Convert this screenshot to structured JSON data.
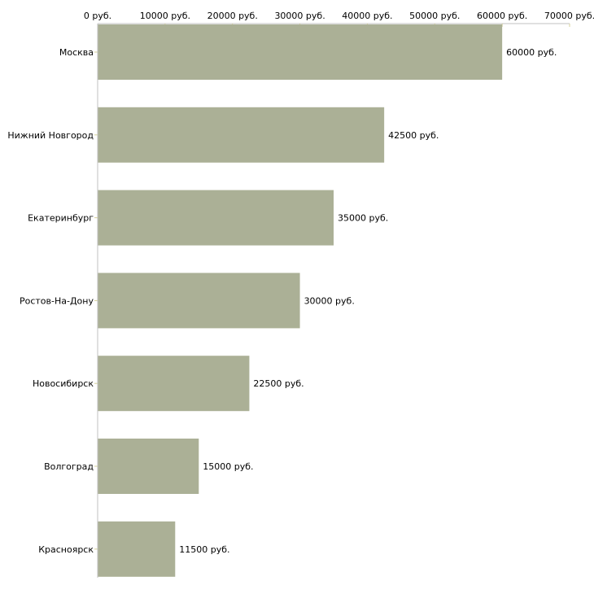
{
  "chart_data": {
    "type": "bar",
    "orientation": "horizontal",
    "title": "",
    "xlabel": "",
    "ylabel": "",
    "xlim": [
      0,
      70000
    ],
    "x_ticks": [
      0,
      10000,
      20000,
      30000,
      40000,
      50000,
      60000,
      70000
    ],
    "tick_labels": [
      "0 руб.",
      "10000 руб.",
      "20000 руб.",
      "30000 руб.",
      "40000 руб.",
      "50000 руб.",
      "60000 руб.",
      "70000 руб."
    ],
    "categories": [
      "Москва",
      "Нижний Новгород",
      "Екатеринбург",
      "Ростов-На-Дону",
      "Новосибирск",
      "Волгоград",
      "Красноярск"
    ],
    "values": [
      60000,
      42500,
      35000,
      30000,
      22500,
      15000,
      11500
    ],
    "data_labels": [
      "60000 руб.",
      "42500 руб.",
      "35000 руб.",
      "30000 руб.",
      "22500 руб.",
      "15000 руб.",
      "11500 руб."
    ],
    "bar_color": "#abb096",
    "axis_color": "#c0c0c0",
    "tick_color": "#d6d29a",
    "grid": false
  }
}
